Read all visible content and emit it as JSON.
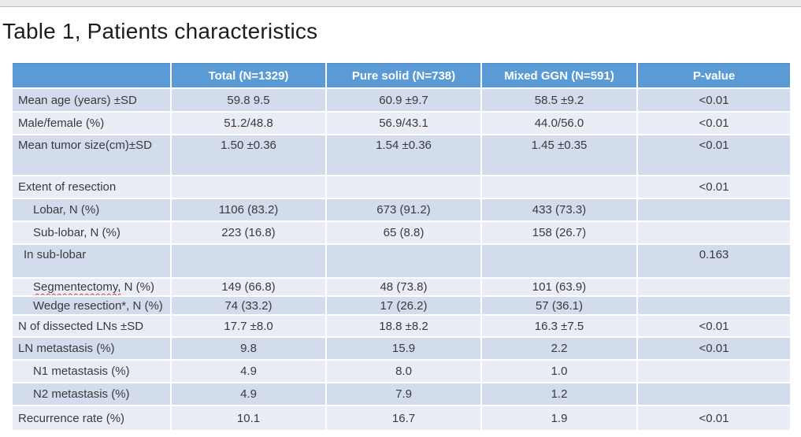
{
  "title": "Table 1, Patients characteristics",
  "table": {
    "columns": [
      "",
      "Total (N=1329)",
      "Pure solid (N=738)",
      "Mixed GGN (N=591)",
      "P-value"
    ],
    "rows": [
      {
        "label": "Mean age (years) ±SD",
        "indent": 0,
        "values": [
          "59.8 9.5",
          "60.9 ±9.7",
          "58.5 ±9.2",
          "<0.01"
        ]
      },
      {
        "label": "Male/female (%)",
        "indent": 0,
        "values": [
          "51.2/48.8",
          "56.9/43.1",
          "44.0/56.0",
          "<0.01"
        ]
      },
      {
        "label": "Mean tumor size(cm)±SD",
        "indent": 0,
        "values": [
          "1.50 ±0.36",
          "1.54 ±0.36",
          "1.45 ±0.35",
          "<0.01"
        ]
      },
      {
        "label": "Extent of resection",
        "indent": 0,
        "values": [
          "",
          "",
          "",
          "<0.01"
        ]
      },
      {
        "label": "Lobar, N (%)",
        "indent": 2,
        "values": [
          "1106 (83.2)",
          "673 (91.2)",
          "433 (73.3)",
          ""
        ]
      },
      {
        "label": "Sub-lobar, N (%)",
        "indent": 2,
        "values": [
          "223 (16.8)",
          "65 (8.8)",
          "158 (26.7)",
          ""
        ]
      },
      {
        "label": "In sub-lobar",
        "indent": 1,
        "values": [
          "",
          "",
          "",
          "0.163"
        ]
      },
      {
        "label": "Segmentectomy, N (%)",
        "indent": 2,
        "misspelled_part": "Segmentectomy,",
        "label_rest": " N (%)",
        "values": [
          "149 (66.8)",
          "48 (73.8)",
          "101 (63.9)",
          ""
        ]
      },
      {
        "label": "Wedge resection*, N (%)",
        "indent": 2,
        "values": [
          "74 (33.2)",
          "17 (26.2)",
          "57 (36.1)",
          ""
        ]
      },
      {
        "label": "N of dissected LNs ±SD",
        "indent": 0,
        "values": [
          "17.7 ±8.0",
          "18.8 ±8.2",
          "16.3 ±7.5",
          "<0.01"
        ]
      },
      {
        "label": "LN metastasis (%)",
        "indent": 0,
        "values": [
          "9.8",
          "15.9",
          "2.2",
          "<0.01"
        ]
      },
      {
        "label": "N1 metastasis (%)",
        "indent": 2,
        "values": [
          "4.9",
          "8.0",
          "1.0",
          ""
        ]
      },
      {
        "label": "N2 metastasis (%)",
        "indent": 2,
        "values": [
          "4.9",
          "7.9",
          "1.2",
          ""
        ]
      },
      {
        "label": "Recurrence rate (%)",
        "indent": 0,
        "values": [
          "10.1",
          "16.7",
          "1.9",
          "<0.01"
        ]
      }
    ]
  },
  "colors": {
    "header_bg": "#5b9bd5",
    "header_text": "#ffffff",
    "band_dark": "#d3dcec",
    "band_light": "#eaedf5",
    "spellcheck_underline": "#e0402a"
  }
}
